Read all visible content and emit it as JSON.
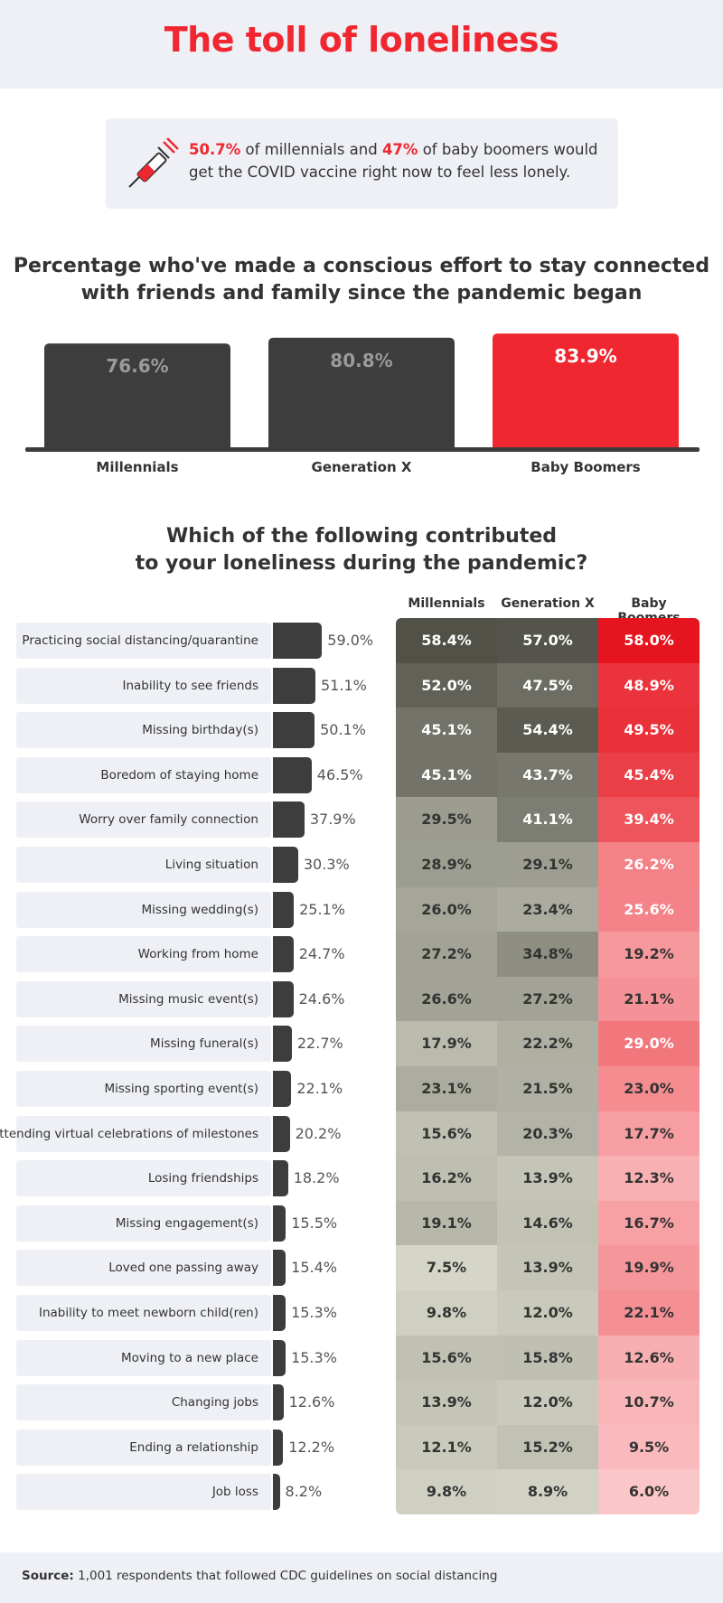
{
  "title": "The toll of loneliness",
  "callout": {
    "stat1": "50.7%",
    "text1": " of millennials and ",
    "stat2": "47%",
    "text2": " of baby boomers would get the COVID vaccine right now to feel less lonely."
  },
  "section1_title": [
    "Percentage who've made a conscious effort to stay connected",
    "with friends and family since the pandemic began"
  ],
  "section2_title": [
    "Which of the following contributed",
    "to your loneliness during the pandemic?"
  ],
  "colors": {
    "accent": "#f02730",
    "dark_bar": "#3d3d3d",
    "panel": "#eef0f5"
  },
  "chart_data": [
    {
      "type": "bar",
      "title": "Percentage who've made a conscious effort to stay connected with friends and family since the pandemic began",
      "categories": [
        "Millennials",
        "Generation X",
        "Baby Boomers"
      ],
      "values": [
        76.6,
        80.8,
        83.9
      ],
      "value_labels": [
        "76.6%",
        "80.8%",
        "83.9%"
      ],
      "highlight": "Baby Boomers"
    },
    {
      "type": "bar",
      "orientation": "horizontal",
      "title": "Which of the following contributed to your loneliness during the pandemic?",
      "categories": [
        "Practicing social distancing/quarantine",
        "Inability to see friends",
        "Missing birthday(s)",
        "Boredom of staying home",
        "Worry over family connection",
        "Living situation",
        "Missing wedding(s)",
        "Working from home",
        "Missing music event(s)",
        "Missing funeral(s)",
        "Missing sporting event(s)",
        "Attending virtual celebrations of milestones",
        "Losing friendships",
        "Missing engagement(s)",
        "Loved one passing away",
        "Inability to meet newborn child(ren)",
        "Moving to a new place",
        "Changing jobs",
        "Ending a relationship",
        "Job loss"
      ],
      "values": [
        59.0,
        51.1,
        50.1,
        46.5,
        37.9,
        30.3,
        25.1,
        24.7,
        24.6,
        22.7,
        22.1,
        20.2,
        18.2,
        15.5,
        15.4,
        15.3,
        15.3,
        12.6,
        12.2,
        8.2
      ],
      "value_labels": [
        "59.0%",
        "51.1%",
        "50.1%",
        "46.5%",
        "37.9%",
        "30.3%",
        "25.1%",
        "24.7%",
        "24.6%",
        "22.7%",
        "22.1%",
        "20.2%",
        "18.2%",
        "15.5%",
        "15.4%",
        "15.3%",
        "15.3%",
        "12.6%",
        "12.2%",
        "8.2%"
      ]
    },
    {
      "type": "heatmap",
      "columns": [
        "Millennials",
        "Generation X",
        "Baby Boomers"
      ],
      "series": [
        {
          "name": "Millennials",
          "values": [
            58.4,
            52.0,
            45.1,
            45.1,
            29.5,
            28.9,
            26.0,
            27.2,
            26.6,
            17.9,
            23.1,
            15.6,
            16.2,
            19.1,
            7.5,
            9.8,
            15.6,
            13.9,
            12.1,
            9.8
          ],
          "labels": [
            "58.4%",
            "52.0%",
            "45.1%",
            "45.1%",
            "29.5%",
            "28.9%",
            "26.0%",
            "27.2%",
            "26.6%",
            "17.9%",
            "23.1%",
            "15.6%",
            "16.2%",
            "19.1%",
            "7.5%",
            "9.8%",
            "15.6%",
            "13.9%",
            "12.1%",
            "9.8%"
          ]
        },
        {
          "name": "Generation X",
          "values": [
            57.0,
            47.5,
            54.4,
            43.7,
            41.1,
            29.1,
            23.4,
            34.8,
            27.2,
            22.2,
            21.5,
            20.3,
            13.9,
            14.6,
            13.9,
            12.0,
            15.8,
            12.0,
            15.2,
            8.9
          ],
          "labels": [
            "57.0%",
            "47.5%",
            "54.4%",
            "43.7%",
            "41.1%",
            "29.1%",
            "23.4%",
            "34.8%",
            "27.2%",
            "22.2%",
            "21.5%",
            "20.3%",
            "13.9%",
            "14.6%",
            "13.9%",
            "12.0%",
            "15.8%",
            "12.0%",
            "15.2%",
            "8.9%"
          ]
        },
        {
          "name": "Baby Boomers",
          "values": [
            58.0,
            48.9,
            49.5,
            45.4,
            39.4,
            26.2,
            25.6,
            19.2,
            21.1,
            29.0,
            23.0,
            17.7,
            12.3,
            16.7,
            19.9,
            22.1,
            12.6,
            10.7,
            9.5,
            6.0
          ],
          "labels": [
            "58.0%",
            "48.9%",
            "49.5%",
            "45.4%",
            "39.4%",
            "26.2%",
            "25.6%",
            "19.2%",
            "21.1%",
            "29.0%",
            "23.0%",
            "17.7%",
            "12.3%",
            "16.7%",
            "19.9%",
            "22.1%",
            "12.6%",
            "10.7%",
            "9.5%",
            "6.0%"
          ]
        }
      ]
    }
  ],
  "footer": {
    "label": "Source:",
    "text": " 1,001 respondents that followed CDC guidelines on social distancing"
  }
}
